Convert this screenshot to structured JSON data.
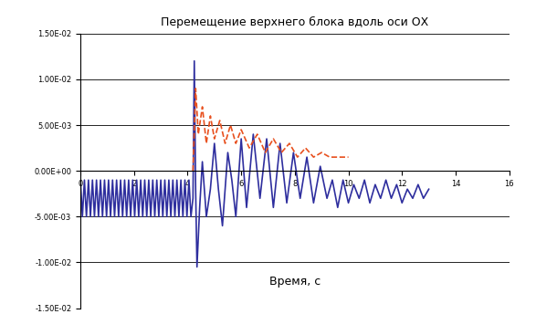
{
  "chart_data": {
    "type": "line",
    "title": "Перемещение верхнего блока вдоль оси ОХ",
    "x_label": "Время, с",
    "xlim": [
      0,
      16
    ],
    "xticks": [
      0,
      2,
      4,
      6,
      8,
      10,
      12,
      14,
      16
    ],
    "ylim": [
      -0.015,
      0.015
    ],
    "yticks": [
      {
        "value": -0.015,
        "label": "-1.50E-02"
      },
      {
        "value": -0.01,
        "label": "-1.00E-02"
      },
      {
        "value": -0.005,
        "label": "-5.00E-03"
      },
      {
        "value": 0,
        "label": "0.00E+00"
      },
      {
        "value": 0.005,
        "label": "5.00E-03"
      },
      {
        "value": 0.01,
        "label": "1.00E-02"
      },
      {
        "value": 0.015,
        "label": "1.50E-02"
      }
    ],
    "grid": true,
    "series": [
      {
        "color": "#2e2e9e",
        "line_style": "solid",
        "x": [
          0,
          0.075,
          0.15,
          0.225,
          0.3,
          0.375,
          0.45,
          0.525,
          0.6,
          0.675,
          0.75,
          0.825,
          0.9,
          0.975,
          1.05,
          1.125,
          1.2,
          1.275,
          1.35,
          1.425,
          1.5,
          1.575,
          1.65,
          1.725,
          1.8,
          1.875,
          1.95,
          2.025,
          2.1,
          2.175,
          2.25,
          2.325,
          2.4,
          2.475,
          2.55,
          2.625,
          2.7,
          2.775,
          2.85,
          2.925,
          3.0,
          3.075,
          3.15,
          3.225,
          3.3,
          3.375,
          3.45,
          3.525,
          3.6,
          3.675,
          3.75,
          3.825,
          3.9,
          3.975,
          4.05,
          4.125,
          4.2,
          4.25,
          4.3,
          4.35,
          4.45,
          4.55,
          4.7,
          4.85,
          5.0,
          5.15,
          5.3,
          5.5,
          5.65,
          5.8,
          6.0,
          6.2,
          6.45,
          6.7,
          6.95,
          7.2,
          7.45,
          7.7,
          7.95,
          8.2,
          8.45,
          8.7,
          8.95,
          9.2,
          9.4,
          9.6,
          9.8,
          10.0,
          10.2,
          10.4,
          10.6,
          10.8,
          11.0,
          11.2,
          11.4,
          11.6,
          11.8,
          12.0,
          12.2,
          12.4,
          12.6,
          12.8,
          13.0
        ],
        "values": [
          -0.001,
          -0.005,
          -0.001,
          -0.005,
          -0.001,
          -0.005,
          -0.001,
          -0.005,
          -0.001,
          -0.005,
          -0.001,
          -0.005,
          -0.001,
          -0.005,
          -0.001,
          -0.005,
          -0.001,
          -0.005,
          -0.001,
          -0.005,
          -0.001,
          -0.005,
          -0.001,
          -0.005,
          -0.001,
          -0.005,
          -0.001,
          -0.005,
          -0.001,
          -0.005,
          -0.001,
          -0.005,
          -0.001,
          -0.005,
          -0.001,
          -0.005,
          -0.001,
          -0.005,
          -0.001,
          -0.005,
          -0.001,
          -0.005,
          -0.001,
          -0.005,
          -0.001,
          -0.005,
          -0.001,
          -0.005,
          -0.001,
          -0.005,
          -0.001,
          -0.005,
          -0.001,
          -0.005,
          -0.001,
          -0.005,
          -0.003,
          0.012,
          -0.002,
          -0.0105,
          -0.004,
          0.001,
          -0.005,
          -0.002,
          0.003,
          -0.002,
          -0.006,
          0.002,
          -0.001,
          -0.005,
          0.0035,
          -0.004,
          0.004,
          -0.003,
          0.0035,
          -0.004,
          0.003,
          -0.0035,
          0.002,
          -0.003,
          0.0015,
          -0.0035,
          0.0005,
          -0.003,
          -0.001,
          -0.004,
          -0.001,
          -0.0035,
          -0.0015,
          -0.003,
          -0.001,
          -0.0035,
          -0.0015,
          -0.003,
          -0.001,
          -0.003,
          -0.0015,
          -0.0035,
          -0.002,
          -0.003,
          -0.0015,
          -0.003,
          -0.002
        ]
      },
      {
        "color": "#e8501e",
        "line_style": "dashed",
        "x": [
          4.2,
          4.3,
          4.4,
          4.55,
          4.7,
          4.85,
          5.0,
          5.2,
          5.4,
          5.6,
          5.8,
          6.0,
          6.3,
          6.6,
          6.9,
          7.2,
          7.5,
          7.8,
          8.1,
          8.4,
          8.7,
          9.0,
          9.3,
          9.6,
          10.0
        ],
        "values": [
          0.0,
          0.009,
          0.004,
          0.007,
          0.003,
          0.006,
          0.0035,
          0.0055,
          0.003,
          0.005,
          0.003,
          0.0045,
          0.0025,
          0.004,
          0.002,
          0.0035,
          0.002,
          0.003,
          0.0015,
          0.0025,
          0.0015,
          0.002,
          0.0015,
          0.0015,
          0.0015
        ]
      }
    ]
  }
}
